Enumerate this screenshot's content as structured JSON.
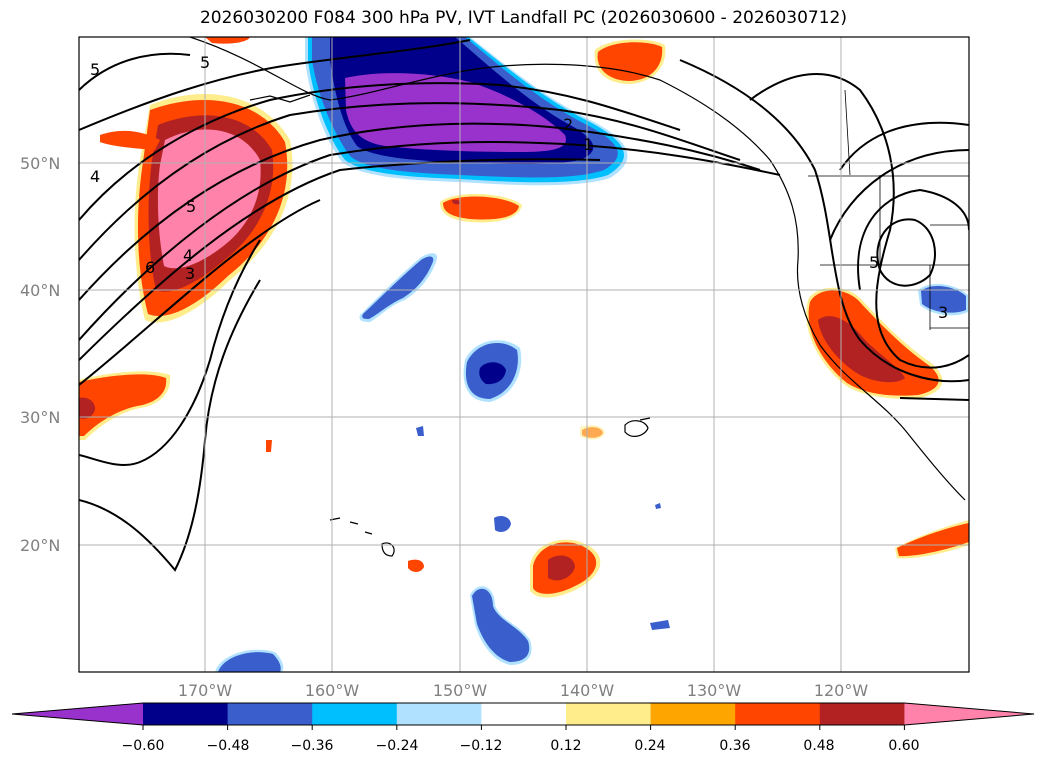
{
  "title": "2026030200 F084 300 hPa PV, IVT Landfall PC (2026030600 - 2026030712)",
  "map": {
    "lat_labels": [
      "50°N",
      "40°N",
      "30°N",
      "20°N"
    ],
    "lon_labels": [
      "170°W",
      "160°W",
      "150°W",
      "140°W",
      "130°W",
      "120°W"
    ],
    "contour_labels": [
      "5",
      "5",
      "4",
      "5",
      "6",
      "4",
      "3",
      "2",
      "1",
      "5",
      "3"
    ]
  },
  "colorbar": {
    "colors": [
      "#9932cc",
      "#00008b",
      "#3a5fcd",
      "#00bfff",
      "#b0e2ff",
      "#ffffff",
      "#ffec8b",
      "#ffa500",
      "#ff4500",
      "#b22222",
      "#ff82ab"
    ],
    "ticks": [
      "−0.60",
      "−0.48",
      "−0.36",
      "−0.24",
      "−0.12",
      "0.12",
      "0.24",
      "0.36",
      "0.48",
      "0.60"
    ]
  }
}
